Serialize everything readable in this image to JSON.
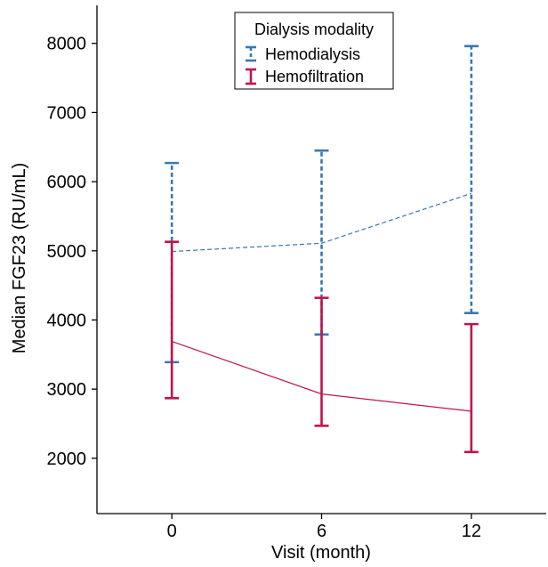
{
  "chart_data": {
    "type": "line",
    "xlabel": "Visit (month)",
    "ylabel": "Median FGF23 (RU/mL)",
    "x": [
      0,
      6,
      12
    ],
    "x_tick_labels": [
      "0",
      "6",
      "12"
    ],
    "xlim": [
      -3,
      15
    ],
    "ylim": [
      1200,
      8550
    ],
    "y_ticks": [
      2000,
      3000,
      4000,
      5000,
      6000,
      7000,
      8000
    ],
    "y_tick_labels": [
      "2000",
      "3000",
      "4000",
      "5000",
      "6000",
      "7000",
      "8000"
    ],
    "grid": false,
    "legend": {
      "title": "Dialysis modality",
      "position": "top-center"
    },
    "series": [
      {
        "name": "Hemodialysis",
        "color": "#3a78b0",
        "line_style": "dashed",
        "values": [
          4990,
          5110,
          5830
        ],
        "lower": [
          3390,
          3790,
          4100
        ],
        "upper": [
          6270,
          6450,
          7960
        ]
      },
      {
        "name": "Hemofiltration",
        "color": "#c0134f",
        "line_style": "solid",
        "values": [
          3690,
          2930,
          2680
        ],
        "lower": [
          2870,
          2470,
          2090
        ],
        "upper": [
          5130,
          4320,
          3940
        ]
      }
    ]
  }
}
